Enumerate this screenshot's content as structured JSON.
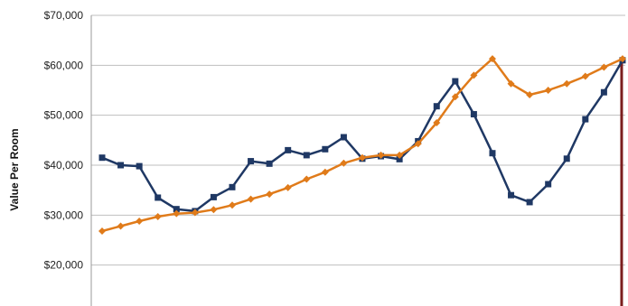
{
  "chart_data": {
    "type": "line",
    "ylabel": "Value Per Room",
    "ylim": [
      10000,
      70000
    ],
    "yticks": [
      20000,
      30000,
      40000,
      50000,
      60000,
      70000
    ],
    "ytick_labels": [
      "$20,000",
      "$30,000",
      "$40,000",
      "$50,000",
      "$60,000",
      "$70,000"
    ],
    "grid": true,
    "colors": {
      "series_1": "#1f3864",
      "series_2": "#e07b1a",
      "marker_line": "#7b1e1e",
      "grid": "#bfbfbf"
    },
    "series": [
      {
        "color": "#1f3864",
        "marker": "square",
        "values": [
          41500,
          40000,
          39800,
          33500,
          31200,
          30800,
          33600,
          35600,
          40800,
          40300,
          43000,
          42000,
          43200,
          45600,
          41300,
          41800,
          41200,
          44800,
          51800,
          56800,
          50200,
          42400,
          34000,
          32600,
          36200,
          41300,
          49200,
          54600,
          61000
        ]
      },
      {
        "color": "#e07b1a",
        "marker": "diamond",
        "values": [
          26800,
          27800,
          28800,
          29700,
          30300,
          30500,
          31100,
          32000,
          33200,
          34200,
          35500,
          37200,
          38600,
          40400,
          41500,
          42000,
          42000,
          44300,
          48500,
          53700,
          58000,
          61300,
          56300,
          54100,
          55000,
          56300,
          57800,
          59600,
          61300
        ]
      }
    ],
    "vertical_marker_index": 28
  }
}
